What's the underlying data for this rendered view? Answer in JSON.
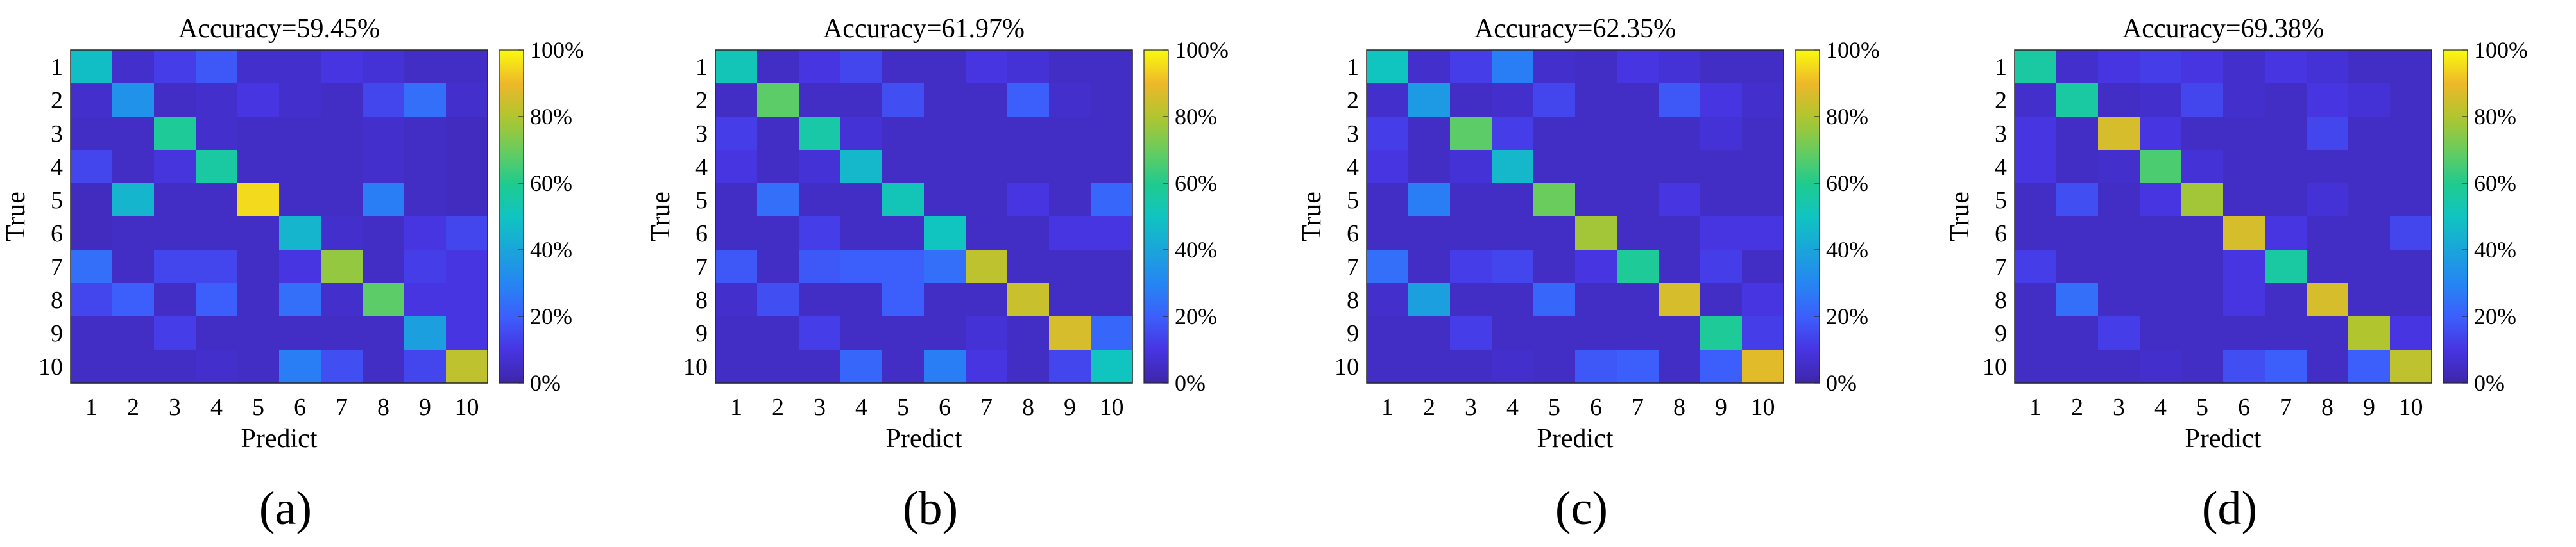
{
  "colors": {
    "colormap": [
      "#3e26a8",
      "#4735e2",
      "#3c5ffc",
      "#2586f3",
      "#1aa5da",
      "#10c4c0",
      "#20cb8e",
      "#6acc5d",
      "#b1c52f",
      "#eeb82a",
      "#f9fb0e"
    ]
  },
  "chart_data": [
    {
      "type": "heatmap",
      "title": "Accuracy=59.45%",
      "xlabel": "Predict",
      "ylabel": "True",
      "panel_label": "(a)",
      "categories": [
        "1",
        "2",
        "3",
        "4",
        "5",
        "6",
        "7",
        "8",
        "9",
        "10"
      ],
      "colorbar": {
        "range": [
          0,
          100
        ],
        "ticks": [
          "0%",
          "20%",
          "40%",
          "60%",
          "80%",
          "100%"
        ]
      },
      "matrix": [
        [
          48,
          6,
          12,
          18,
          6,
          6,
          10,
          8,
          5,
          5
        ],
        [
          6,
          34,
          5,
          6,
          10,
          6,
          5,
          14,
          24,
          6
        ],
        [
          5,
          5,
          58,
          6,
          5,
          5,
          5,
          6,
          5,
          4
        ],
        [
          14,
          5,
          9,
          56,
          5,
          5,
          5,
          6,
          5,
          4
        ],
        [
          4,
          45,
          5,
          5,
          95,
          5,
          5,
          28,
          5,
          4
        ],
        [
          4,
          5,
          5,
          5,
          5,
          45,
          6,
          5,
          10,
          14
        ],
        [
          24,
          5,
          14,
          14,
          5,
          10,
          76,
          5,
          12,
          10
        ],
        [
          14,
          20,
          5,
          20,
          5,
          24,
          6,
          68,
          10,
          10
        ],
        [
          5,
          5,
          12,
          5,
          5,
          5,
          5,
          5,
          38,
          10
        ],
        [
          5,
          5,
          5,
          6,
          5,
          28,
          16,
          5,
          14,
          82
        ]
      ]
    },
    {
      "type": "heatmap",
      "title": "Accuracy=61.97%",
      "xlabel": "Predict",
      "ylabel": "True",
      "panel_label": "(b)",
      "categories": [
        "1",
        "2",
        "3",
        "4",
        "5",
        "6",
        "7",
        "8",
        "9",
        "10"
      ],
      "colorbar": {
        "range": [
          0,
          100
        ],
        "ticks": [
          "0%",
          "20%",
          "40%",
          "60%",
          "80%",
          "100%"
        ]
      },
      "matrix": [
        [
          52,
          5,
          10,
          14,
          5,
          5,
          10,
          8,
          5,
          5
        ],
        [
          5,
          68,
          5,
          5,
          16,
          5,
          5,
          20,
          6,
          5
        ],
        [
          12,
          5,
          55,
          8,
          5,
          5,
          5,
          5,
          5,
          5
        ],
        [
          10,
          5,
          8,
          46,
          5,
          5,
          5,
          5,
          5,
          5
        ],
        [
          5,
          24,
          5,
          5,
          52,
          5,
          5,
          10,
          5,
          22
        ],
        [
          5,
          5,
          12,
          5,
          5,
          50,
          5,
          5,
          10,
          10
        ],
        [
          18,
          5,
          18,
          20,
          20,
          24,
          82,
          5,
          5,
          5
        ],
        [
          6,
          16,
          5,
          5,
          20,
          5,
          5,
          84,
          5,
          5
        ],
        [
          5,
          5,
          12,
          5,
          5,
          5,
          8,
          5,
          86,
          22
        ],
        [
          5,
          5,
          5,
          22,
          5,
          28,
          10,
          5,
          14,
          50
        ]
      ]
    },
    {
      "type": "heatmap",
      "title": "Accuracy=62.35%",
      "xlabel": "Predict",
      "ylabel": "True",
      "panel_label": "(c)",
      "categories": [
        "1",
        "2",
        "3",
        "4",
        "5",
        "6",
        "7",
        "8",
        "9",
        "10"
      ],
      "colorbar": {
        "range": [
          0,
          100
        ],
        "ticks": [
          "0%",
          "20%",
          "40%",
          "60%",
          "80%",
          "100%"
        ]
      },
      "matrix": [
        [
          50,
          6,
          12,
          28,
          6,
          5,
          10,
          8,
          5,
          5
        ],
        [
          6,
          36,
          5,
          6,
          14,
          5,
          5,
          18,
          10,
          6
        ],
        [
          12,
          5,
          68,
          12,
          5,
          5,
          5,
          5,
          8,
          5
        ],
        [
          10,
          5,
          8,
          46,
          5,
          5,
          5,
          5,
          5,
          5
        ],
        [
          5,
          28,
          5,
          5,
          70,
          5,
          5,
          10,
          5,
          5
        ],
        [
          5,
          5,
          5,
          5,
          5,
          78,
          5,
          5,
          10,
          10
        ],
        [
          24,
          5,
          12,
          14,
          5,
          10,
          58,
          5,
          12,
          5
        ],
        [
          6,
          38,
          5,
          5,
          22,
          5,
          5,
          86,
          5,
          10
        ],
        [
          5,
          5,
          12,
          5,
          5,
          5,
          5,
          5,
          58,
          12
        ],
        [
          5,
          5,
          5,
          6,
          5,
          18,
          20,
          5,
          20,
          88
        ]
      ]
    },
    {
      "type": "heatmap",
      "title": "Accuracy=69.38%",
      "xlabel": "Predict",
      "ylabel": "True",
      "panel_label": "(d)",
      "categories": [
        "1",
        "2",
        "3",
        "4",
        "5",
        "6",
        "7",
        "8",
        "9",
        "10"
      ],
      "colorbar": {
        "range": [
          0,
          100
        ],
        "ticks": [
          "0%",
          "20%",
          "40%",
          "60%",
          "80%",
          "100%"
        ]
      },
      "matrix": [
        [
          56,
          6,
          10,
          12,
          10,
          6,
          10,
          8,
          5,
          5
        ],
        [
          6,
          56,
          5,
          6,
          14,
          6,
          5,
          10,
          8,
          5
        ],
        [
          10,
          5,
          86,
          10,
          5,
          5,
          5,
          14,
          5,
          5
        ],
        [
          10,
          5,
          6,
          66,
          8,
          5,
          5,
          5,
          5,
          5
        ],
        [
          5,
          16,
          5,
          10,
          78,
          5,
          5,
          8,
          5,
          5
        ],
        [
          5,
          5,
          5,
          5,
          5,
          86,
          10,
          5,
          5,
          14
        ],
        [
          12,
          5,
          5,
          5,
          5,
          10,
          56,
          5,
          5,
          5
        ],
        [
          5,
          24,
          5,
          5,
          5,
          10,
          5,
          86,
          5,
          5
        ],
        [
          5,
          5,
          12,
          5,
          5,
          5,
          5,
          5,
          80,
          10
        ],
        [
          5,
          5,
          5,
          6,
          5,
          16,
          20,
          5,
          20,
          82
        ]
      ]
    }
  ]
}
